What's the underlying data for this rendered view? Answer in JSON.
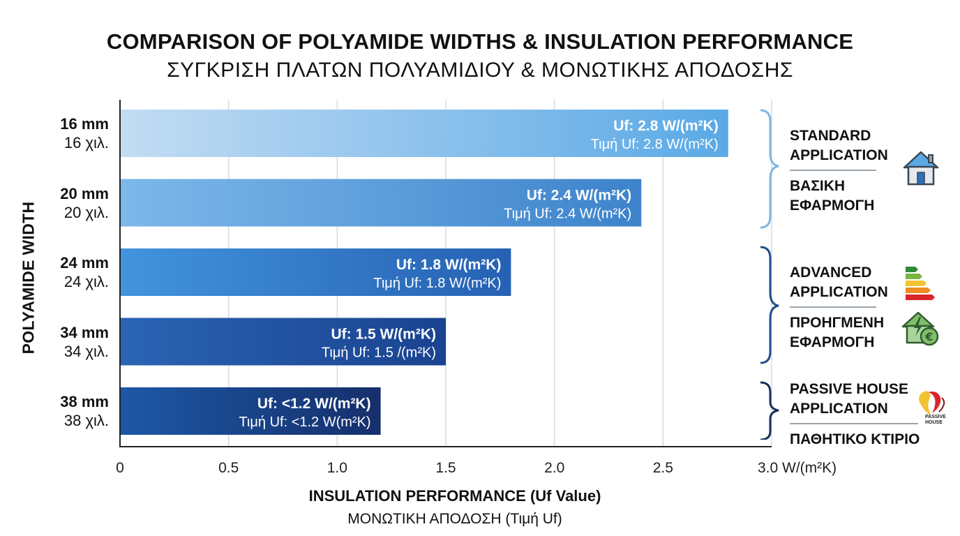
{
  "title": {
    "english": "COMPARISON OF POLYAMIDE WIDTHS & INSULATION PERFORMANCE",
    "greek": "ΣΥΓΚΡΙΣΗ ΠΛΑΤΩΝ ΠΟΛΥΑΜΙΔΙΟΥ & ΜΟΝΩΤΙΚΗΣ ΑΠΟΔΟΣΗΣ"
  },
  "y_axis_title": "POLYAMIDE WIDTH",
  "x_axis_title": {
    "english": "INSULATION PERFORMANCE (Uf Value)",
    "greek": "ΜΟΝΩΤΙΚΗ ΑΠΟΔΟΣΗ (Τιμή Uf)"
  },
  "chart_data": {
    "type": "bar",
    "orientation": "horizontal",
    "title": "COMPARISON OF POLYAMIDE WIDTHS & INSULATION PERFORMANCE",
    "xlabel": "INSULATION PERFORMANCE (Uf Value)",
    "ylabel": "POLYAMIDE WIDTH",
    "xlim": [
      0,
      3.0
    ],
    "grid": true,
    "x_ticks": [
      {
        "value": 0,
        "label": "0"
      },
      {
        "value": 0.5,
        "label": "0.5"
      },
      {
        "value": 1.0,
        "label": "1.0"
      },
      {
        "value": 1.5,
        "label": "1.5"
      },
      {
        "value": 2.0,
        "label": "2.0"
      },
      {
        "value": 2.5,
        "label": "2.5"
      },
      {
        "value": 3.0,
        "label": "3.0 W/(m²K)"
      }
    ],
    "categories": [
      {
        "label": "16 mm",
        "label_greek": "16 χιλ."
      },
      {
        "label": "20 mm",
        "label_greek": "20 χιλ."
      },
      {
        "label": "24 mm",
        "label_greek": "24 χιλ."
      },
      {
        "label": "34 mm",
        "label_greek": "34 χιλ."
      },
      {
        "label": "38 mm",
        "label_greek": "38 χιλ."
      }
    ],
    "values": [
      2.8,
      2.4,
      1.8,
      1.5,
      1.2
    ],
    "data_labels": [
      {
        "line1": "Uf: 2.8 W/(m²K)",
        "line2": "Τιμή Uf: 2.8 W/(m²K)"
      },
      {
        "line1": "Uf: 2.4 W/(m²K)",
        "line2": "Τιμή Uf: 2.4 W/(m²K)"
      },
      {
        "line1": "Uf: 1.8 W/(m²K)",
        "line2": "Τιμή Uf: 1.8 W/(m²K)"
      },
      {
        "line1": "Uf: 1.5 W/(m²K)",
        "line2": "Τιμή Uf: 1.5 /(m²K)"
      },
      {
        "line1": "Uf: <1.2 W/(m²K)",
        "line2": "Τιμή Uf: <1.2 W(m²K)"
      }
    ],
    "bar_colors": [
      [
        "#c2dcf3",
        "#5aa9e6"
      ],
      [
        "#7db8ea",
        "#3d83cb"
      ],
      [
        "#4294dc",
        "#2661b3"
      ],
      [
        "#2a64b3",
        "#1a4390"
      ],
      [
        "#1d58a6",
        "#152f6b"
      ]
    ]
  },
  "groups": [
    {
      "english": "STANDARD APPLICATION",
      "greek": "ΒΑΣΙΚΗ ΕΦΑΡΜΟΓΗ",
      "bracket_color": "#7fb6e2",
      "icons": [
        "house-icon"
      ]
    },
    {
      "english": "ADVANCED APPLICATION",
      "greek": "ΠΡΟΗΓΜΕΝΗ ΕΦΑΡΜΟΓΗ",
      "bracket_color": "#1f4f8a",
      "icons": [
        "energy-rating-icon",
        "green-energy-house-icon"
      ]
    },
    {
      "english": "PASSIVE HOUSE APPLICATION",
      "greek": "ΠΑΘΗΤΙΚΟ ΚΤΙΡΙΟ",
      "bracket_color": "#1a2f5c",
      "icons": [
        "passive-house-logo-icon"
      ],
      "logo_text": "PASSIVE HOUSE"
    }
  ],
  "colors": {
    "axis": "#222222",
    "grid": "#d6dbe0",
    "separator": "#9aa4ad"
  }
}
